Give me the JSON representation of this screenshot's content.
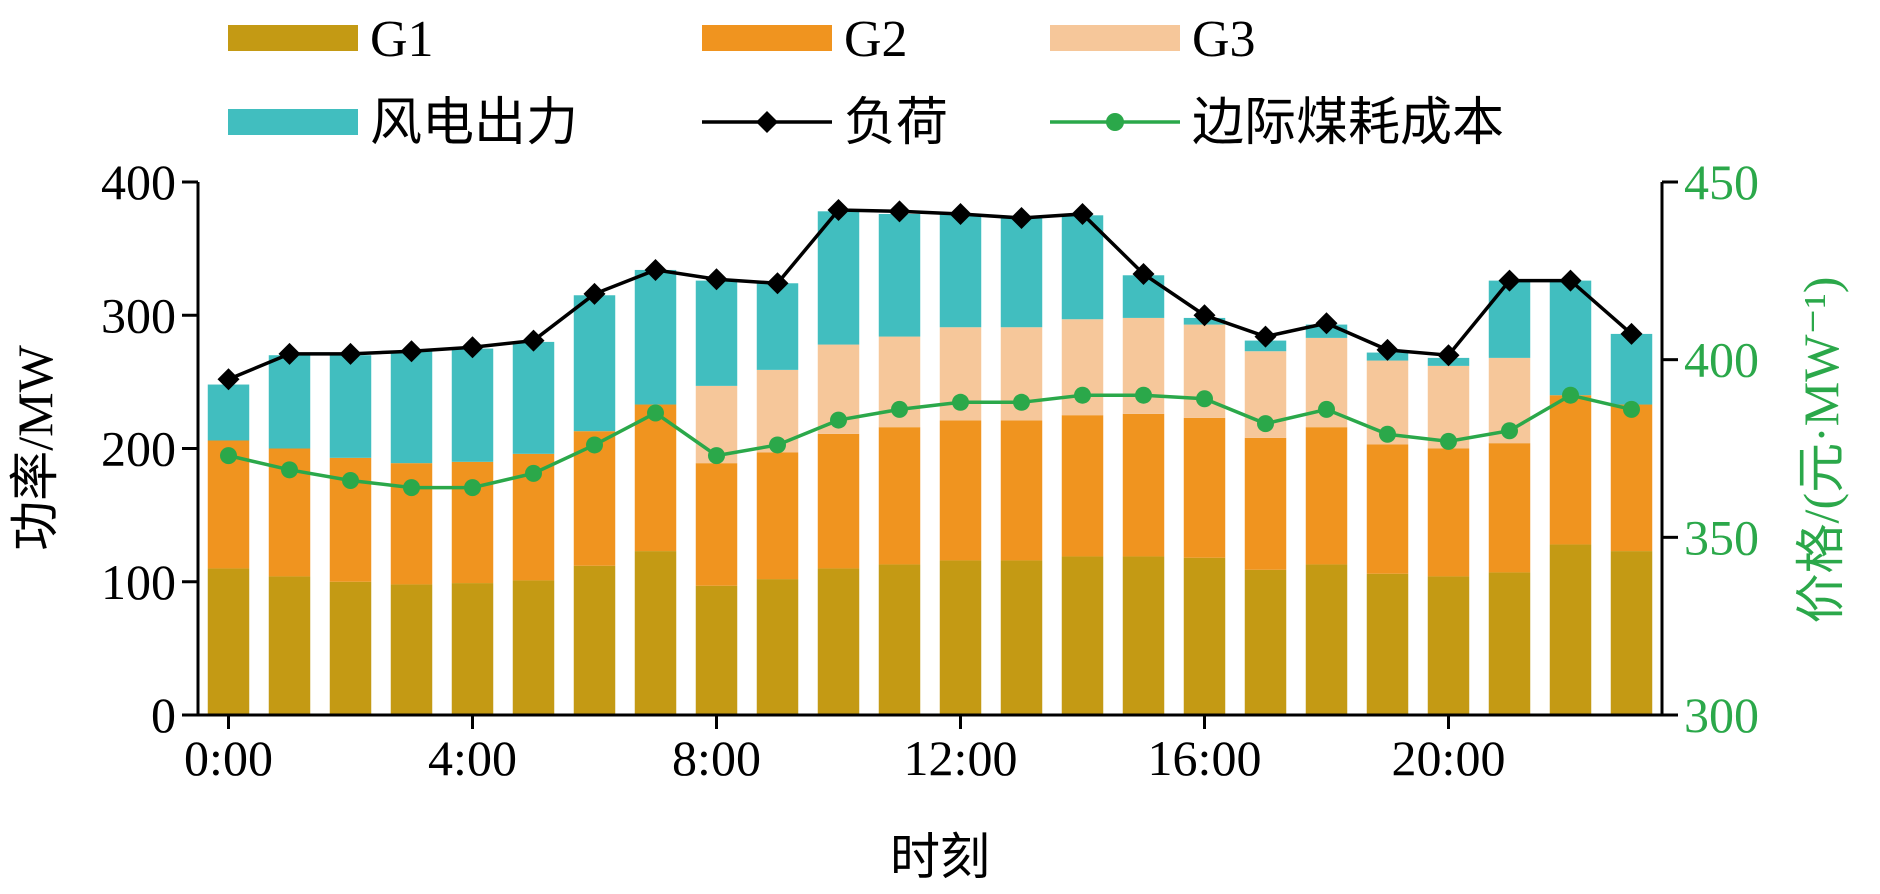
{
  "colors": {
    "G1": "#C49A14",
    "G2": "#F0941F",
    "G3": "#F6C79A",
    "wind": "#41BEBF",
    "load": "#000000",
    "cost": "#2BA84A",
    "axis": "#000000",
    "right_axis": "#2BA84A"
  },
  "chart_data": {
    "type": "bar",
    "stacked": true,
    "grid": false,
    "legend_position": "top",
    "hours": [
      0,
      1,
      2,
      3,
      4,
      5,
      6,
      7,
      8,
      9,
      10,
      11,
      12,
      13,
      14,
      15,
      16,
      17,
      18,
      19,
      20,
      21,
      22,
      23
    ],
    "x_tick_labels": [
      "0:00",
      "4:00",
      "8:00",
      "12:00",
      "16:00",
      "20:00"
    ],
    "x_tick_hours": [
      0,
      4,
      8,
      12,
      16,
      20
    ],
    "xlabel": "时刻",
    "ylabel_left": "功率/MW",
    "ylabel_right": "价格/(元·MW⁻¹)",
    "ylim_left": [
      0,
      400
    ],
    "yticks_left": [
      "0",
      "100",
      "200",
      "300",
      "400"
    ],
    "ylim_right": [
      300,
      450
    ],
    "yticks_right": [
      "300",
      "350",
      "400",
      "450"
    ],
    "bar_series": [
      {
        "name": "G1",
        "color_key": "G1",
        "values": [
          110,
          104,
          100,
          98,
          99,
          101,
          112,
          123,
          97,
          102,
          110,
          113,
          116,
          116,
          119,
          119,
          118,
          109,
          113,
          106,
          104,
          107,
          128,
          123
        ]
      },
      {
        "name": "G2",
        "color_key": "G2",
        "values": [
          96,
          96,
          93,
          91,
          91,
          95,
          101,
          110,
          92,
          95,
          101,
          103,
          105,
          105,
          106,
          107,
          105,
          99,
          103,
          97,
          96,
          97,
          112,
          110
        ]
      },
      {
        "name": "G3",
        "color_key": "G3",
        "values": [
          0,
          0,
          0,
          0,
          0,
          0,
          0,
          0,
          58,
          62,
          67,
          68,
          70,
          70,
          72,
          72,
          70,
          65,
          67,
          63,
          62,
          64,
          0,
          0
        ]
      },
      {
        "name": "风电出力",
        "color_key": "wind",
        "values": [
          42,
          70,
          77,
          84,
          85,
          84,
          102,
          101,
          79,
          65,
          100,
          92,
          85,
          82,
          78,
          32,
          5,
          8,
          10,
          6,
          6,
          58,
          86,
          53
        ]
      }
    ],
    "line_series": [
      {
        "name": "负荷",
        "axis": "left",
        "color_key": "load",
        "marker": "diamond",
        "values": [
          252,
          271,
          271,
          273,
          276,
          281,
          316,
          334,
          327,
          324,
          379,
          378,
          376,
          373,
          376,
          331,
          300,
          284,
          294,
          274,
          270,
          326,
          326,
          286
        ]
      },
      {
        "name": "边际煤耗成本",
        "axis": "right",
        "color_key": "cost",
        "marker": "circle",
        "values": [
          373,
          369,
          366,
          364,
          364,
          368,
          376,
          385,
          373,
          376,
          383,
          386,
          388,
          388,
          390,
          390,
          389,
          382,
          386,
          379,
          377,
          380,
          390,
          386
        ]
      }
    ],
    "legend": [
      {
        "label": "G1",
        "kind": "bar",
        "color_key": "G1"
      },
      {
        "label": "G2",
        "kind": "bar",
        "color_key": "G2"
      },
      {
        "label": "G3",
        "kind": "bar",
        "color_key": "G3"
      },
      {
        "label": "风电出力",
        "kind": "bar",
        "color_key": "wind"
      },
      {
        "label": "负荷",
        "kind": "line-diamond",
        "color_key": "load"
      },
      {
        "label": "边际煤耗成本",
        "kind": "line-circle",
        "color_key": "cost"
      }
    ]
  }
}
